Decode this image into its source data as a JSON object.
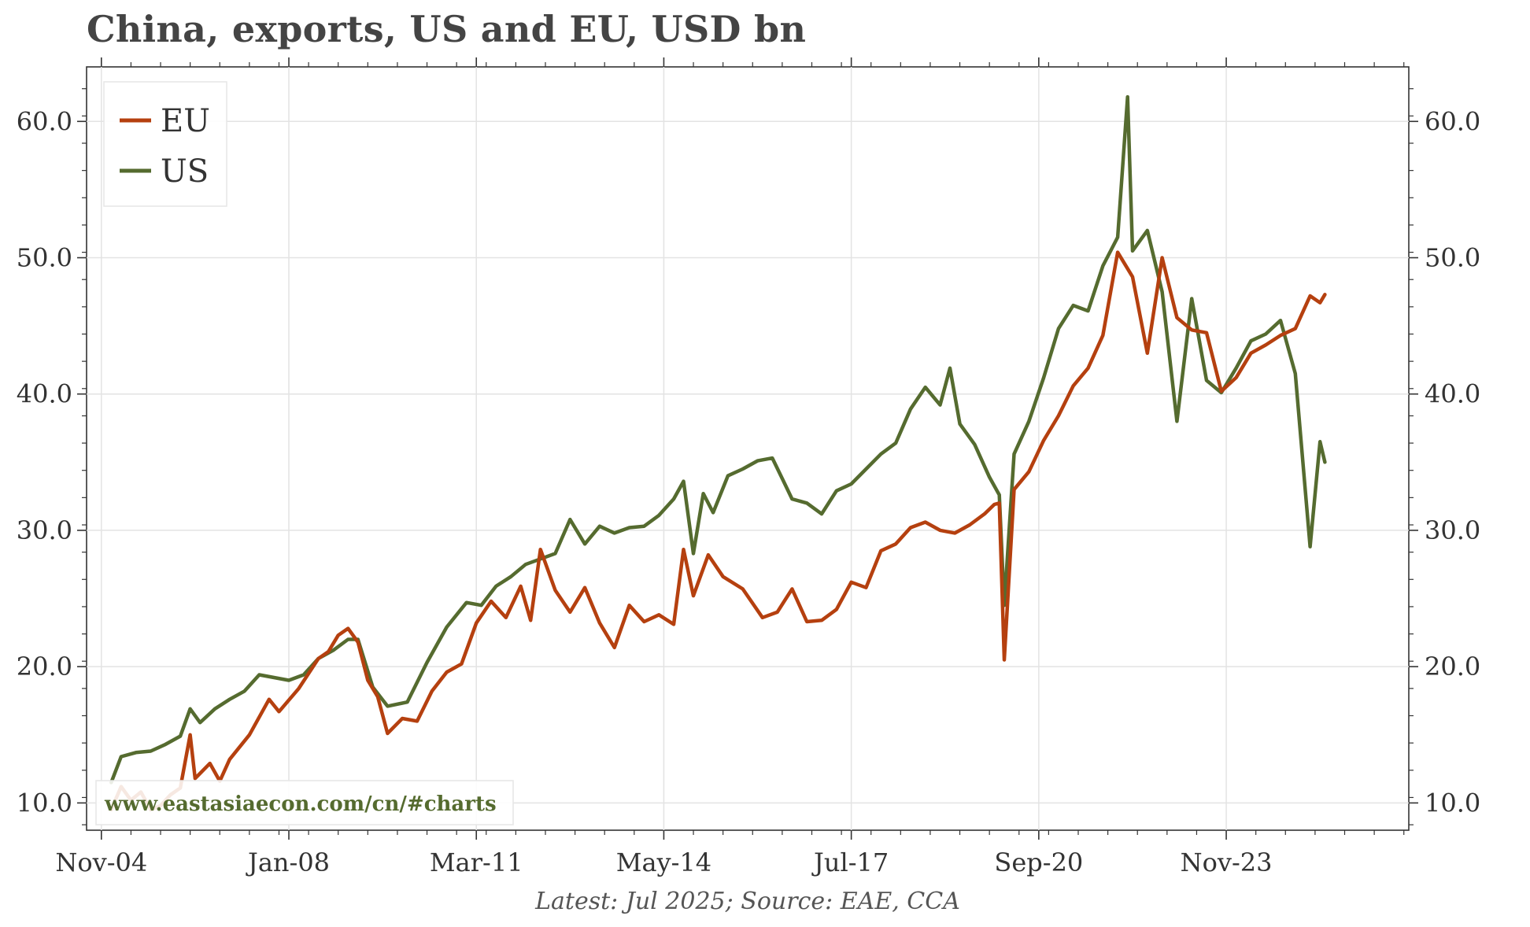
{
  "title": "China, exports, US and EU, USD bn",
  "footnote": "Latest: Jul 2025; Source: EAE, CCA",
  "watermark": "www.eastasiaecon.com/cn/#charts",
  "colors": {
    "EU": "#b5400f",
    "US": "#556b2f",
    "grid": "#e3e3e3",
    "axis": "#333333"
  },
  "chart_data": {
    "type": "line",
    "title": "China, exports, US and EU, USD bn",
    "xlabel": "",
    "ylabel": "",
    "ylim": [
      8.0,
      64.0
    ],
    "xlim": [
      "2004-08",
      "2026-12"
    ],
    "grid": true,
    "legend_position": "top-left",
    "y_ticks": [
      10.0,
      20.0,
      30.0,
      40.0,
      50.0,
      60.0
    ],
    "y_tick_labels": [
      "10.0",
      "20.0",
      "30.0",
      "40.0",
      "50.0",
      "60.0"
    ],
    "x_ticks": [
      "2004-11",
      "2008-01",
      "2011-03",
      "2014-05",
      "2017-07",
      "2020-09",
      "2023-11"
    ],
    "x_tick_labels": [
      "Nov-04",
      "Jan-08",
      "Mar-11",
      "May-14",
      "Jul-17",
      "Sep-20",
      "Nov-23"
    ],
    "series": [
      {
        "name": "EU",
        "points": [
          [
            "2005-01",
            9.5
          ],
          [
            "2005-03",
            11.2
          ],
          [
            "2005-05",
            10.2
          ],
          [
            "2005-07",
            10.8
          ],
          [
            "2005-09",
            9.5
          ],
          [
            "2005-11",
            9.8
          ],
          [
            "2006-01",
            10.6
          ],
          [
            "2006-03",
            11.1
          ],
          [
            "2006-05",
            15.0
          ],
          [
            "2006-06",
            11.8
          ],
          [
            "2006-09",
            12.9
          ],
          [
            "2006-11",
            11.6
          ],
          [
            "2007-01",
            13.2
          ],
          [
            "2007-05",
            15.0
          ],
          [
            "2007-09",
            17.6
          ],
          [
            "2007-11",
            16.7
          ],
          [
            "2008-03",
            18.4
          ],
          [
            "2008-07",
            20.6
          ],
          [
            "2008-09",
            21.1
          ],
          [
            "2008-11",
            22.3
          ],
          [
            "2009-01",
            22.8
          ],
          [
            "2009-03",
            21.8
          ],
          [
            "2009-05",
            19.0
          ],
          [
            "2009-07",
            17.8
          ],
          [
            "2009-09",
            15.1
          ],
          [
            "2009-12",
            16.2
          ],
          [
            "2010-03",
            16.0
          ],
          [
            "2010-06",
            18.2
          ],
          [
            "2010-09",
            19.6
          ],
          [
            "2010-12",
            20.2
          ],
          [
            "2011-03",
            23.2
          ],
          [
            "2011-06",
            24.8
          ],
          [
            "2011-09",
            23.6
          ],
          [
            "2011-12",
            25.9
          ],
          [
            "2012-02",
            23.4
          ],
          [
            "2012-04",
            28.6
          ],
          [
            "2012-07",
            25.6
          ],
          [
            "2012-10",
            24.0
          ],
          [
            "2013-01",
            25.8
          ],
          [
            "2013-04",
            23.2
          ],
          [
            "2013-07",
            21.4
          ],
          [
            "2013-10",
            24.5
          ],
          [
            "2014-01",
            23.3
          ],
          [
            "2014-04",
            23.8
          ],
          [
            "2014-07",
            23.1
          ],
          [
            "2014-09",
            28.6
          ],
          [
            "2014-11",
            25.2
          ],
          [
            "2015-02",
            28.2
          ],
          [
            "2015-05",
            26.6
          ],
          [
            "2015-09",
            25.7
          ],
          [
            "2016-01",
            23.6
          ],
          [
            "2016-04",
            24.0
          ],
          [
            "2016-07",
            25.7
          ],
          [
            "2016-10",
            23.3
          ],
          [
            "2017-01",
            23.4
          ],
          [
            "2017-04",
            24.2
          ],
          [
            "2017-07",
            26.2
          ],
          [
            "2017-10",
            25.8
          ],
          [
            "2018-01",
            28.5
          ],
          [
            "2018-04",
            29.0
          ],
          [
            "2018-07",
            30.2
          ],
          [
            "2018-10",
            30.6
          ],
          [
            "2019-01",
            30.0
          ],
          [
            "2019-04",
            29.8
          ],
          [
            "2019-07",
            30.4
          ],
          [
            "2019-10",
            31.2
          ],
          [
            "2019-12",
            31.9
          ],
          [
            "2020-01",
            32.0
          ],
          [
            "2020-02",
            20.5
          ],
          [
            "2020-04",
            33.0
          ],
          [
            "2020-07",
            34.3
          ],
          [
            "2020-10",
            36.6
          ],
          [
            "2021-01",
            38.4
          ],
          [
            "2021-04",
            40.6
          ],
          [
            "2021-07",
            41.9
          ],
          [
            "2021-10",
            44.3
          ],
          [
            "2022-01",
            50.4
          ],
          [
            "2022-04",
            48.6
          ],
          [
            "2022-07",
            43.0
          ],
          [
            "2022-10",
            50.0
          ],
          [
            "2023-01",
            45.6
          ],
          [
            "2023-04",
            44.7
          ],
          [
            "2023-07",
            44.5
          ],
          [
            "2023-10",
            40.2
          ],
          [
            "2024-01",
            41.2
          ],
          [
            "2024-04",
            43.0
          ],
          [
            "2024-07",
            43.6
          ],
          [
            "2024-10",
            44.3
          ],
          [
            "2025-01",
            44.8
          ],
          [
            "2025-04",
            47.2
          ],
          [
            "2025-06",
            46.7
          ],
          [
            "2025-07",
            47.3
          ]
        ]
      },
      {
        "name": "US",
        "points": [
          [
            "2005-01",
            11.5
          ],
          [
            "2005-03",
            13.4
          ],
          [
            "2005-06",
            13.7
          ],
          [
            "2005-09",
            13.8
          ],
          [
            "2005-12",
            14.3
          ],
          [
            "2006-03",
            14.9
          ],
          [
            "2006-05",
            16.9
          ],
          [
            "2006-07",
            15.9
          ],
          [
            "2006-10",
            16.9
          ],
          [
            "2007-01",
            17.6
          ],
          [
            "2007-04",
            18.2
          ],
          [
            "2007-07",
            19.4
          ],
          [
            "2007-10",
            19.2
          ],
          [
            "2008-01",
            19.0
          ],
          [
            "2008-04",
            19.4
          ],
          [
            "2008-07",
            20.6
          ],
          [
            "2008-10",
            21.2
          ],
          [
            "2009-01",
            22.0
          ],
          [
            "2009-03",
            22.0
          ],
          [
            "2009-06",
            18.5
          ],
          [
            "2009-09",
            17.1
          ],
          [
            "2010-01",
            17.4
          ],
          [
            "2010-05",
            20.3
          ],
          [
            "2010-09",
            22.9
          ],
          [
            "2011-01",
            24.7
          ],
          [
            "2011-04",
            24.5
          ],
          [
            "2011-07",
            25.9
          ],
          [
            "2011-10",
            26.6
          ],
          [
            "2012-01",
            27.5
          ],
          [
            "2012-04",
            27.9
          ],
          [
            "2012-07",
            28.3
          ],
          [
            "2012-10",
            30.8
          ],
          [
            "2013-01",
            29.0
          ],
          [
            "2013-04",
            30.3
          ],
          [
            "2013-07",
            29.8
          ],
          [
            "2013-10",
            30.2
          ],
          [
            "2014-01",
            30.3
          ],
          [
            "2014-04",
            31.1
          ],
          [
            "2014-07",
            32.3
          ],
          [
            "2014-09",
            33.6
          ],
          [
            "2014-11",
            28.3
          ],
          [
            "2015-01",
            32.7
          ],
          [
            "2015-03",
            31.3
          ],
          [
            "2015-06",
            34.0
          ],
          [
            "2015-09",
            34.5
          ],
          [
            "2015-12",
            35.1
          ],
          [
            "2016-03",
            35.3
          ],
          [
            "2016-05",
            33.8
          ],
          [
            "2016-07",
            32.3
          ],
          [
            "2016-10",
            32.0
          ],
          [
            "2017-01",
            31.2
          ],
          [
            "2017-04",
            32.9
          ],
          [
            "2017-07",
            33.4
          ],
          [
            "2017-10",
            34.5
          ],
          [
            "2018-01",
            35.6
          ],
          [
            "2018-04",
            36.4
          ],
          [
            "2018-07",
            38.9
          ],
          [
            "2018-10",
            40.5
          ],
          [
            "2019-01",
            39.2
          ],
          [
            "2019-03",
            41.9
          ],
          [
            "2019-05",
            37.8
          ],
          [
            "2019-08",
            36.3
          ],
          [
            "2019-11",
            33.9
          ],
          [
            "2020-01",
            32.6
          ],
          [
            "2020-02",
            24.5
          ],
          [
            "2020-04",
            35.6
          ],
          [
            "2020-07",
            38.0
          ],
          [
            "2020-10",
            41.2
          ],
          [
            "2021-01",
            44.8
          ],
          [
            "2021-04",
            46.5
          ],
          [
            "2021-07",
            46.1
          ],
          [
            "2021-10",
            49.4
          ],
          [
            "2022-01",
            51.5
          ],
          [
            "2022-03",
            61.8
          ],
          [
            "2022-04",
            50.5
          ],
          [
            "2022-07",
            52.0
          ],
          [
            "2022-10",
            47.5
          ],
          [
            "2023-01",
            38.0
          ],
          [
            "2023-04",
            47.0
          ],
          [
            "2023-07",
            41.0
          ],
          [
            "2023-10",
            40.1
          ],
          [
            "2024-01",
            41.9
          ],
          [
            "2024-04",
            43.9
          ],
          [
            "2024-07",
            44.4
          ],
          [
            "2024-10",
            45.4
          ],
          [
            "2025-01",
            41.5
          ],
          [
            "2025-04",
            28.8
          ],
          [
            "2025-06",
            36.5
          ],
          [
            "2025-07",
            35.0
          ]
        ]
      }
    ]
  }
}
